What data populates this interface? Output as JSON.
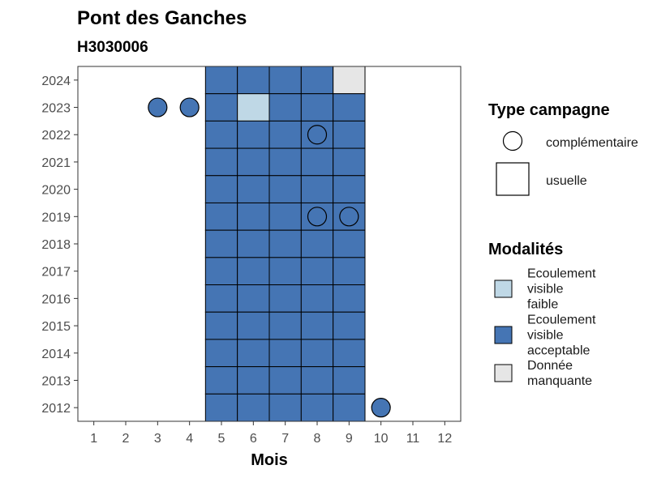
{
  "chart_data": {
    "type": "heatmap",
    "title": "Pont des Ganches",
    "subtitle": "H3030006",
    "xlabel": "Mois",
    "ylabel": "",
    "x_ticks": [
      1,
      2,
      3,
      4,
      5,
      6,
      7,
      8,
      9,
      10,
      11,
      12
    ],
    "y_ticks": [
      2012,
      2013,
      2014,
      2015,
      2016,
      2017,
      2018,
      2019,
      2020,
      2021,
      2022,
      2023,
      2024
    ],
    "xlim": [
      0.5,
      12.5
    ],
    "ylim": [
      2011.5,
      2024.5
    ],
    "grid": false,
    "legend_position": "right",
    "shape_legend": {
      "title": "Type campagne",
      "entries": [
        {
          "key": "complementaire",
          "label": "complémentaire",
          "shape": "circle"
        },
        {
          "key": "usuelle",
          "label": "usuelle",
          "shape": "square"
        }
      ]
    },
    "color_legend": {
      "title": "Modalités",
      "entries": [
        {
          "key": "faible",
          "label_lines": [
            "Ecoulement",
            "visible",
            "faible"
          ],
          "color": "#bfd8e6"
        },
        {
          "key": "acceptable",
          "label_lines": [
            "Ecoulement",
            "visible",
            "acceptable"
          ],
          "color": "#4575b4"
        },
        {
          "key": "manquante",
          "label_lines": [
            "Donnée",
            "manquante"
          ],
          "color": "#e6e6e6"
        }
      ]
    },
    "points": [
      {
        "year": 2024,
        "month": 5,
        "value": "acceptable",
        "type": "usuelle"
      },
      {
        "year": 2024,
        "month": 6,
        "value": "acceptable",
        "type": "usuelle"
      },
      {
        "year": 2024,
        "month": 7,
        "value": "acceptable",
        "type": "usuelle"
      },
      {
        "year": 2024,
        "month": 8,
        "value": "acceptable",
        "type": "usuelle"
      },
      {
        "year": 2024,
        "month": 9,
        "value": "manquante",
        "type": "usuelle"
      },
      {
        "year": 2023,
        "month": 3,
        "value": "acceptable",
        "type": "complementaire"
      },
      {
        "year": 2023,
        "month": 4,
        "value": "acceptable",
        "type": "complementaire"
      },
      {
        "year": 2023,
        "month": 5,
        "value": "acceptable",
        "type": "usuelle"
      },
      {
        "year": 2023,
        "month": 6,
        "value": "faible",
        "type": "usuelle"
      },
      {
        "year": 2023,
        "month": 7,
        "value": "acceptable",
        "type": "usuelle"
      },
      {
        "year": 2023,
        "month": 8,
        "value": "acceptable",
        "type": "usuelle"
      },
      {
        "year": 2023,
        "month": 9,
        "value": "acceptable",
        "type": "usuelle"
      },
      {
        "year": 2022,
        "month": 5,
        "value": "acceptable",
        "type": "usuelle"
      },
      {
        "year": 2022,
        "month": 6,
        "value": "acceptable",
        "type": "usuelle"
      },
      {
        "year": 2022,
        "month": 7,
        "value": "acceptable",
        "type": "usuelle"
      },
      {
        "year": 2022,
        "month": 8,
        "value": "acceptable",
        "type": "usuelle"
      },
      {
        "year": 2022,
        "month": 8,
        "value": "acceptable",
        "type": "complementaire"
      },
      {
        "year": 2022,
        "month": 9,
        "value": "acceptable",
        "type": "usuelle"
      },
      {
        "year": 2021,
        "month": 5,
        "value": "acceptable",
        "type": "usuelle"
      },
      {
        "year": 2021,
        "month": 6,
        "value": "acceptable",
        "type": "usuelle"
      },
      {
        "year": 2021,
        "month": 7,
        "value": "acceptable",
        "type": "usuelle"
      },
      {
        "year": 2021,
        "month": 8,
        "value": "acceptable",
        "type": "usuelle"
      },
      {
        "year": 2021,
        "month": 9,
        "value": "acceptable",
        "type": "usuelle"
      },
      {
        "year": 2020,
        "month": 5,
        "value": "acceptable",
        "type": "usuelle"
      },
      {
        "year": 2020,
        "month": 6,
        "value": "acceptable",
        "type": "usuelle"
      },
      {
        "year": 2020,
        "month": 7,
        "value": "acceptable",
        "type": "usuelle"
      },
      {
        "year": 2020,
        "month": 8,
        "value": "acceptable",
        "type": "usuelle"
      },
      {
        "year": 2020,
        "month": 9,
        "value": "acceptable",
        "type": "usuelle"
      },
      {
        "year": 2019,
        "month": 5,
        "value": "acceptable",
        "type": "usuelle"
      },
      {
        "year": 2019,
        "month": 6,
        "value": "acceptable",
        "type": "usuelle"
      },
      {
        "year": 2019,
        "month": 7,
        "value": "acceptable",
        "type": "usuelle"
      },
      {
        "year": 2019,
        "month": 8,
        "value": "acceptable",
        "type": "usuelle"
      },
      {
        "year": 2019,
        "month": 8,
        "value": "acceptable",
        "type": "complementaire"
      },
      {
        "year": 2019,
        "month": 9,
        "value": "acceptable",
        "type": "usuelle"
      },
      {
        "year": 2019,
        "month": 9,
        "value": "acceptable",
        "type": "complementaire"
      },
      {
        "year": 2018,
        "month": 5,
        "value": "acceptable",
        "type": "usuelle"
      },
      {
        "year": 2018,
        "month": 6,
        "value": "acceptable",
        "type": "usuelle"
      },
      {
        "year": 2018,
        "month": 7,
        "value": "acceptable",
        "type": "usuelle"
      },
      {
        "year": 2018,
        "month": 8,
        "value": "acceptable",
        "type": "usuelle"
      },
      {
        "year": 2018,
        "month": 9,
        "value": "acceptable",
        "type": "usuelle"
      },
      {
        "year": 2017,
        "month": 5,
        "value": "acceptable",
        "type": "usuelle"
      },
      {
        "year": 2017,
        "month": 6,
        "value": "acceptable",
        "type": "usuelle"
      },
      {
        "year": 2017,
        "month": 7,
        "value": "acceptable",
        "type": "usuelle"
      },
      {
        "year": 2017,
        "month": 8,
        "value": "acceptable",
        "type": "usuelle"
      },
      {
        "year": 2017,
        "month": 9,
        "value": "acceptable",
        "type": "usuelle"
      },
      {
        "year": 2016,
        "month": 5,
        "value": "acceptable",
        "type": "usuelle"
      },
      {
        "year": 2016,
        "month": 6,
        "value": "acceptable",
        "type": "usuelle"
      },
      {
        "year": 2016,
        "month": 7,
        "value": "acceptable",
        "type": "usuelle"
      },
      {
        "year": 2016,
        "month": 8,
        "value": "acceptable",
        "type": "usuelle"
      },
      {
        "year": 2016,
        "month": 9,
        "value": "acceptable",
        "type": "usuelle"
      },
      {
        "year": 2015,
        "month": 5,
        "value": "acceptable",
        "type": "usuelle"
      },
      {
        "year": 2015,
        "month": 6,
        "value": "acceptable",
        "type": "usuelle"
      },
      {
        "year": 2015,
        "month": 7,
        "value": "acceptable",
        "type": "usuelle"
      },
      {
        "year": 2015,
        "month": 8,
        "value": "acceptable",
        "type": "usuelle"
      },
      {
        "year": 2015,
        "month": 9,
        "value": "acceptable",
        "type": "usuelle"
      },
      {
        "year": 2014,
        "month": 5,
        "value": "acceptable",
        "type": "usuelle"
      },
      {
        "year": 2014,
        "month": 6,
        "value": "acceptable",
        "type": "usuelle"
      },
      {
        "year": 2014,
        "month": 7,
        "value": "acceptable",
        "type": "usuelle"
      },
      {
        "year": 2014,
        "month": 8,
        "value": "acceptable",
        "type": "usuelle"
      },
      {
        "year": 2014,
        "month": 9,
        "value": "acceptable",
        "type": "usuelle"
      },
      {
        "year": 2013,
        "month": 5,
        "value": "acceptable",
        "type": "usuelle"
      },
      {
        "year": 2013,
        "month": 6,
        "value": "acceptable",
        "type": "usuelle"
      },
      {
        "year": 2013,
        "month": 7,
        "value": "acceptable",
        "type": "usuelle"
      },
      {
        "year": 2013,
        "month": 8,
        "value": "acceptable",
        "type": "usuelle"
      },
      {
        "year": 2013,
        "month": 9,
        "value": "acceptable",
        "type": "usuelle"
      },
      {
        "year": 2012,
        "month": 5,
        "value": "acceptable",
        "type": "usuelle"
      },
      {
        "year": 2012,
        "month": 6,
        "value": "acceptable",
        "type": "usuelle"
      },
      {
        "year": 2012,
        "month": 7,
        "value": "acceptable",
        "type": "usuelle"
      },
      {
        "year": 2012,
        "month": 8,
        "value": "acceptable",
        "type": "usuelle"
      },
      {
        "year": 2012,
        "month": 9,
        "value": "acceptable",
        "type": "usuelle"
      },
      {
        "year": 2012,
        "month": 10,
        "value": "acceptable",
        "type": "complementaire"
      }
    ]
  }
}
